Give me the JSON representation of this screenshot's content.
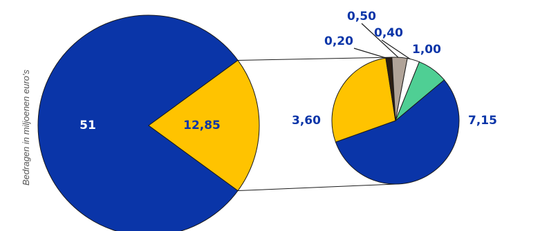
{
  "chart_data": {
    "type": "pie",
    "ylabel": "Bedragen in miljoenen euro's",
    "main_pie": {
      "slices": [
        {
          "value_label": "51",
          "value": 51,
          "color": "#0a35a8",
          "label_color": "#ffffff"
        },
        {
          "value_label": "12,85",
          "value": 12.85,
          "color": "#ffc300",
          "label_color": "#0a35a8"
        }
      ]
    },
    "breakdown_pie": {
      "slices": [
        {
          "value_label": "7,15",
          "value": 7.15,
          "color": "#0a35a8",
          "label_color": "#0a35a8"
        },
        {
          "value_label": "3,60",
          "value": 3.6,
          "color": "#ffc300",
          "label_color": "#0a35a8"
        },
        {
          "value_label": "0,20",
          "value": 0.2,
          "color": "#2b1d13",
          "label_color": "#0a35a8"
        },
        {
          "value_label": "0,50",
          "value": 0.5,
          "color": "#b0a398",
          "label_color": "#0a35a8"
        },
        {
          "value_label": "0,40",
          "value": 0.4,
          "color": "#ffffff",
          "label_color": "#0a35a8"
        },
        {
          "value_label": "1,00",
          "value": 1.0,
          "color": "#4fcf94",
          "label_color": "#0a35a8"
        }
      ]
    }
  }
}
